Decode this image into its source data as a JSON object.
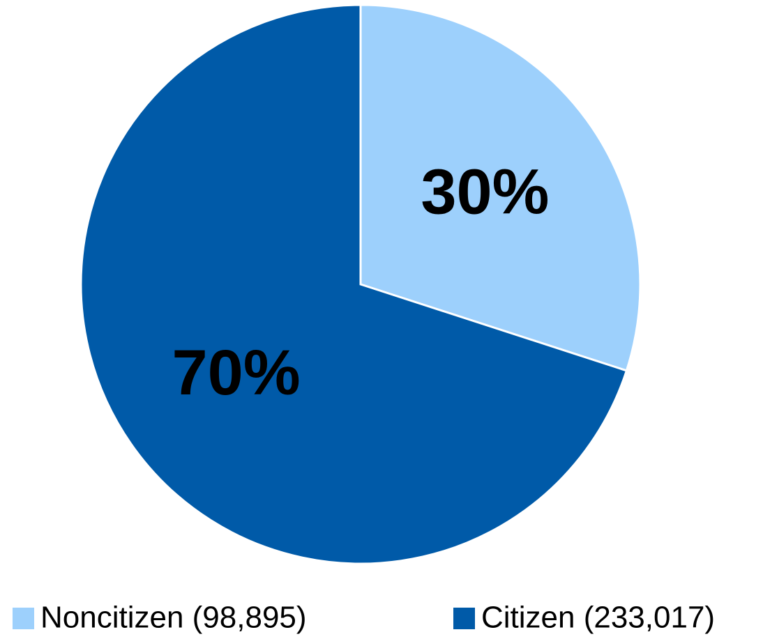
{
  "chart_data": {
    "type": "pie",
    "categories": [
      "Noncitizen (98,895)",
      "Citizen (233,017)"
    ],
    "values": [
      30,
      70
    ],
    "value_labels": [
      "30%",
      "70%"
    ],
    "colors": [
      "#9dd0fc",
      "#005aa8"
    ],
    "legend": "bottom"
  }
}
